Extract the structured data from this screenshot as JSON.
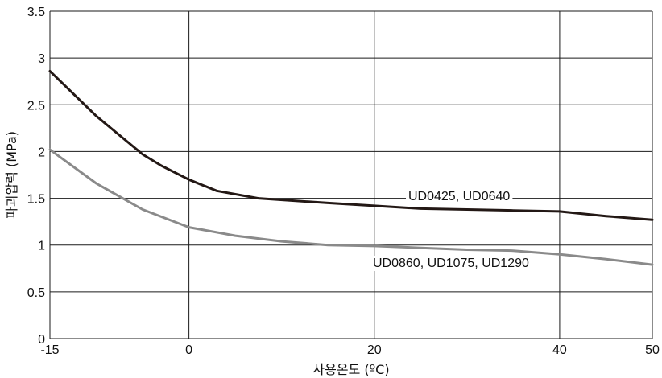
{
  "chart_data": {
    "type": "line",
    "title": "",
    "xlabel": "사용온도 (ºC)",
    "ylabel": "파괴압력 (MPa)",
    "xlim": [
      -15,
      50
    ],
    "ylim": [
      0,
      3.5
    ],
    "x_ticks": [
      -15,
      0,
      20,
      40,
      50
    ],
    "x_tick_labels": [
      "-15",
      "0",
      "20",
      "40",
      "50"
    ],
    "y_ticks": [
      0,
      0.5,
      1,
      1.5,
      2,
      2.5,
      3,
      3.5
    ],
    "y_tick_labels": [
      "0",
      "0.5",
      "1",
      "1.5",
      "2",
      "2.5",
      "3",
      "3.5"
    ],
    "grid": true,
    "series": [
      {
        "name": "UD0425, UD0640",
        "color": "#231815",
        "x": [
          -15,
          -10,
          -5,
          -3,
          0,
          3,
          7.5,
          15,
          20,
          25,
          30,
          35,
          40,
          45,
          50
        ],
        "y": [
          2.86,
          2.38,
          1.97,
          1.85,
          1.7,
          1.58,
          1.5,
          1.45,
          1.42,
          1.39,
          1.38,
          1.37,
          1.36,
          1.31,
          1.27
        ]
      },
      {
        "name": "UD0860, UD1075, UD1290",
        "color": "#8a8a8a",
        "x": [
          -15,
          -10,
          -5,
          0,
          5,
          10,
          15,
          20,
          25,
          30,
          35,
          40,
          45,
          50
        ],
        "y": [
          2.02,
          1.66,
          1.38,
          1.19,
          1.1,
          1.04,
          1.0,
          0.99,
          0.97,
          0.95,
          0.94,
          0.9,
          0.85,
          0.79
        ]
      }
    ]
  }
}
